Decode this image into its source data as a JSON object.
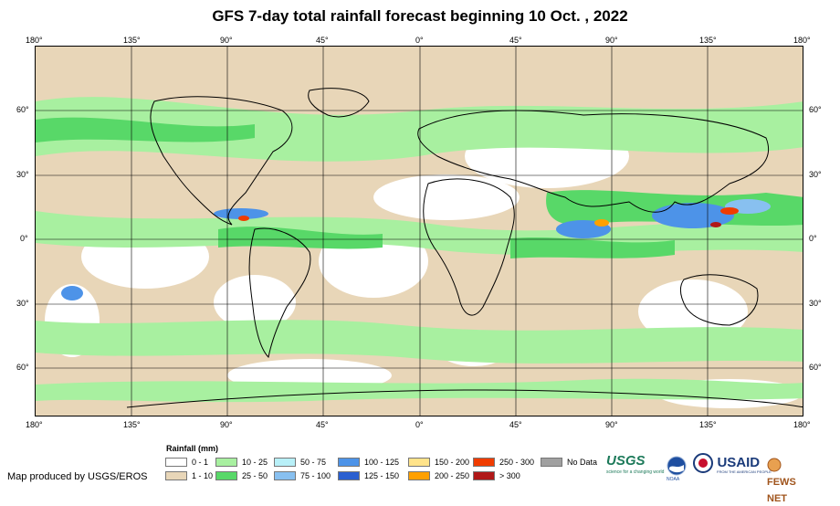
{
  "title": "GFS 7-day total rainfall forecast beginning 10 Oct. , 2022",
  "axes": {
    "lon_labels": [
      "180°",
      "135°",
      "90°",
      "45°",
      "0°",
      "45°",
      "90°",
      "135°",
      "180°"
    ],
    "lat_labels": [
      "60°",
      "30°",
      "0°",
      "30°",
      "60°"
    ]
  },
  "legend": {
    "title": "Rainfall (mm)",
    "items": [
      {
        "label": "0 - 1",
        "color": "#ffffff"
      },
      {
        "label": "1 - 10",
        "color": "#e8d6b8"
      },
      {
        "label": "10 - 25",
        "color": "#a8f0a0"
      },
      {
        "label": "25 - 50",
        "color": "#58d868"
      },
      {
        "label": "50 - 75",
        "color": "#b8f0f8"
      },
      {
        "label": "75 - 100",
        "color": "#88c0f0"
      },
      {
        "label": "100 - 125",
        "color": "#4d93e8"
      },
      {
        "label": "125 - 150",
        "color": "#2a5fd0"
      },
      {
        "label": "150 - 200",
        "color": "#ffe38a"
      },
      {
        "label": "200 - 250",
        "color": "#ffa000"
      },
      {
        "label": "250 - 300",
        "color": "#f03c00"
      },
      {
        "label": "> 300",
        "color": "#b01818"
      },
      {
        "label": "No Data",
        "color": "#a0a0a0"
      }
    ]
  },
  "credit": "Map produced by USGS/EROS",
  "logos": [
    {
      "name": "usgs-logo",
      "text": "USGS",
      "tagline": "science for a changing world"
    },
    {
      "name": "noaa-logo",
      "text": "NOAA"
    },
    {
      "name": "usaid-logo",
      "text": "USAID",
      "tagline": "FROM THE AMERICAN PEOPLE"
    },
    {
      "name": "fews-net-logo",
      "text": "FEWS NET"
    }
  ]
}
